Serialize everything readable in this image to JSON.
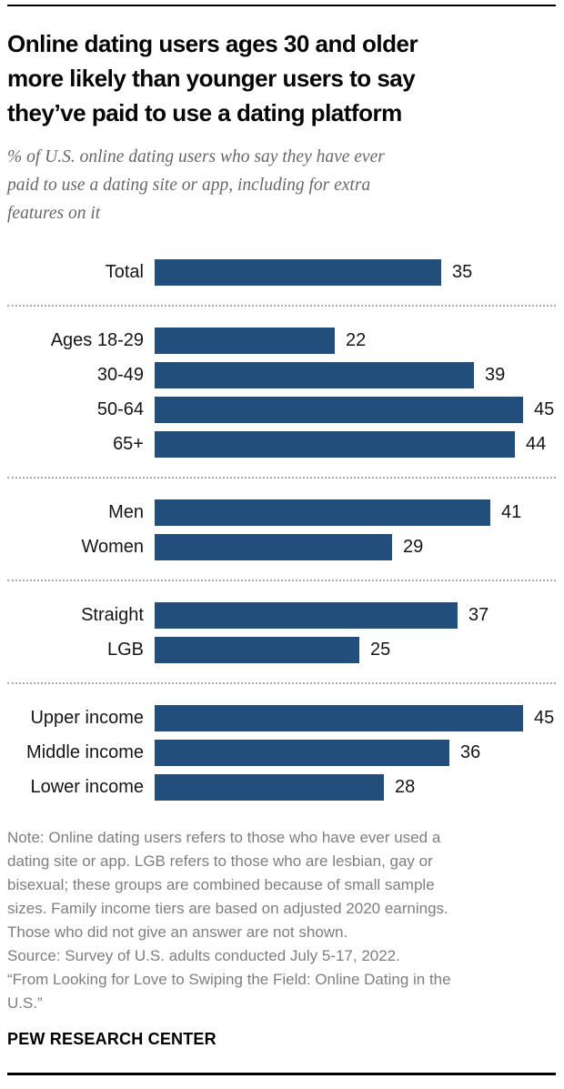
{
  "chart_data": {
    "type": "bar",
    "title": "Online dating users ages 30 and older\nmore likely than younger users to say\nthey’ve paid to use a dating platform",
    "subtitle": "% of U.S. online dating users who say they have ever\npaid to use a dating site or app, including for extra\nfeatures on it",
    "categories": [
      "Total",
      "Ages 18-29",
      "30-49",
      "50-64",
      "65+",
      "Men",
      "Women",
      "Straight",
      "LGB",
      "Upper income",
      "Middle income",
      "Lower income"
    ],
    "values": [
      35,
      22,
      39,
      45,
      44,
      41,
      29,
      37,
      25,
      45,
      36,
      28
    ],
    "group_sizes": [
      1,
      4,
      2,
      2,
      3
    ],
    "xlim": [
      0,
      45
    ],
    "bar_color": "#224E7C",
    "data_labels": true,
    "grid": false,
    "legend": false,
    "orientation": "horizontal"
  },
  "footer": {
    "note": "Note: Online dating users refers to those who have ever used a\ndating site or app. LGB refers to those who are lesbian, gay or\nbisexual; these groups are combined because of small sample\nsizes. Family income tiers are based on adjusted 2020 earnings.\nThose who did not give an answer are not shown.",
    "source": "Source: Survey of U.S. adults conducted July 5-17, 2022.",
    "report": "“From Looking for Love to Swiping the Field: Online Dating in the\nU.S.”",
    "brand": "PEW RESEARCH CENTER"
  }
}
